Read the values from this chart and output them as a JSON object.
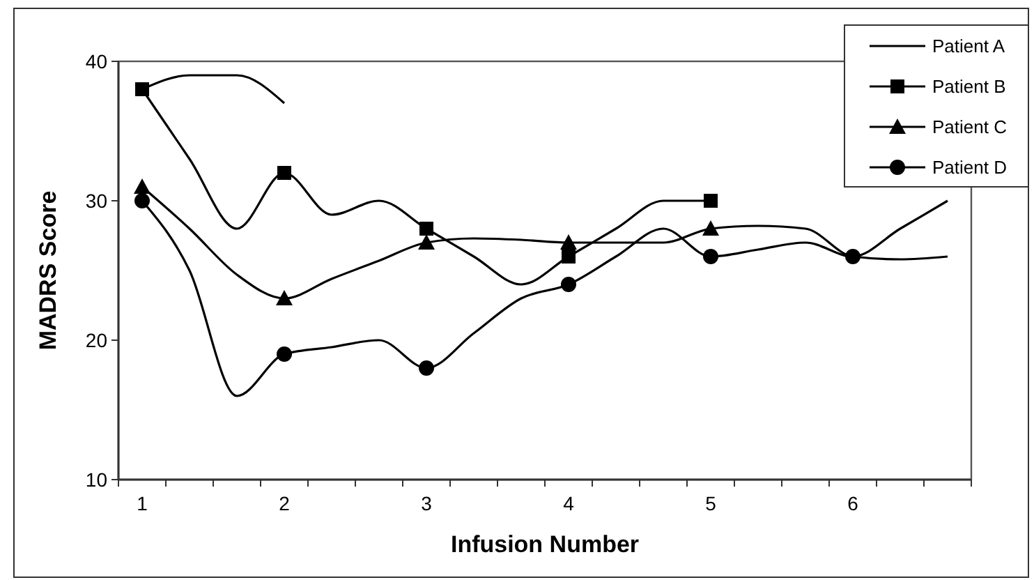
{
  "chart_data": {
    "type": "line",
    "xlabel": "Infusion Number",
    "ylabel": "MADRS Score",
    "categories": [
      "1",
      null,
      null,
      "2",
      null,
      null,
      "3",
      null,
      null,
      "4",
      null,
      null,
      "5",
      null,
      null,
      "6",
      null,
      null
    ],
    "ylim": [
      10,
      40
    ],
    "yticks": [
      10,
      20,
      30,
      40
    ],
    "grid": false,
    "legend": "top right",
    "series": [
      {
        "name": "Patient A",
        "color": "#000000",
        "marker": "none",
        "values": [
          38,
          39,
          39,
          37,
          null,
          null,
          null,
          null,
          null,
          null,
          null,
          null,
          null,
          null,
          null,
          null,
          null,
          null
        ]
      },
      {
        "color": "#000000",
        "values": [
          38,
          33,
          28,
          32,
          29,
          30,
          28,
          26,
          24,
          26,
          28,
          30,
          30,
          null,
          null,
          null,
          null,
          null
        ]
      },
      {
        "color": "#000000",
        "values": [
          31,
          28,
          24.7,
          23,
          24.4,
          25.7,
          27,
          27.3,
          27.2,
          27,
          27,
          27,
          28,
          28.2,
          28,
          26,
          25.8,
          26
        ]
      },
      {
        "color": "#000000",
        "values": [
          30,
          25,
          16,
          19,
          19.5,
          20,
          18,
          20.5,
          23,
          24,
          26,
          28,
          26,
          26.5,
          27,
          26,
          28,
          30
        ]
      },
      {
        "name": "Patient B",
        "type": "scatter",
        "color": "#000000",
        "marker": "square",
        "x": [
          "1",
          "2",
          "3",
          "4",
          "5",
          "6"
        ],
        "values": [
          38,
          32,
          28,
          26,
          30,
          null
        ]
      },
      {
        "name": "Patient C",
        "type": "scatter",
        "color": "#000000",
        "marker": "triangle",
        "x": [
          "1",
          "2",
          "3",
          "4",
          "5",
          "6"
        ],
        "values": [
          31,
          23,
          27,
          27,
          28,
          null
        ]
      },
      {
        "name": "Patient D",
        "type": "scatter",
        "color": "#000000",
        "marker": "circle",
        "x": [
          "1",
          "2",
          "3",
          "4",
          "5",
          "6"
        ],
        "values": [
          30,
          19,
          18,
          24,
          26,
          26
        ]
      }
    ]
  }
}
